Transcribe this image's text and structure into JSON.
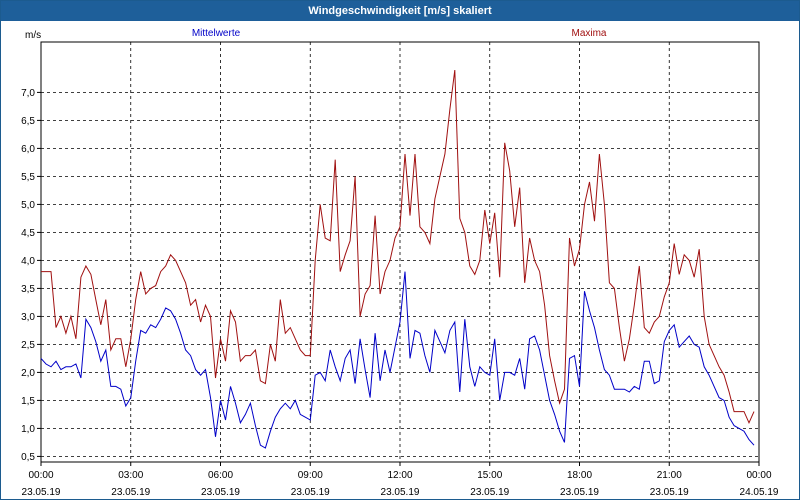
{
  "window": {
    "title": "Windgeschwindigkeit [m/s] skaliert"
  },
  "colors": {
    "mean": "#0000c8",
    "max": "#a01010",
    "grid": "#000000",
    "background": "#ffffff",
    "titlebar": "#1e5f9a"
  },
  "chart_data": {
    "type": "line",
    "ylabel": "m/s",
    "ylim": [
      0.4,
      7.9
    ],
    "yticks": [
      0.5,
      1.0,
      1.5,
      2.0,
      2.5,
      3.0,
      3.5,
      4.0,
      4.5,
      5.0,
      5.5,
      6.0,
      6.5,
      7.0
    ],
    "ytick_labels": [
      "0,5",
      "1,0",
      "1,5",
      "2,0",
      "2,5",
      "3,0",
      "3,5",
      "4,0",
      "4,5",
      "5,0",
      "5,5",
      "6,0",
      "6,5",
      "7,0"
    ],
    "xlim": [
      "23.05.19 00:00",
      "24.05.19 00:00"
    ],
    "xticks": [
      {
        "time": "00:00",
        "date": "23.05.19"
      },
      {
        "time": "03:00",
        "date": "23.05.19"
      },
      {
        "time": "06:00",
        "date": "23.05.19"
      },
      {
        "time": "09:00",
        "date": "23.05.19"
      },
      {
        "time": "12:00",
        "date": "23.05.19"
      },
      {
        "time": "15:00",
        "date": "23.05.19"
      },
      {
        "time": "18:00",
        "date": "23.05.19"
      },
      {
        "time": "21:00",
        "date": "23.05.19"
      },
      {
        "time": "00:00",
        "date": "24.05.19"
      }
    ],
    "grid": true,
    "legend": "top",
    "series": [
      {
        "name": "Mittelwerte",
        "color": "#0000c8",
        "points": [
          [
            "00:00",
            2.25
          ],
          [
            "00:10",
            2.15
          ],
          [
            "00:20",
            2.1
          ],
          [
            "00:30",
            2.2
          ],
          [
            "00:40",
            2.05
          ],
          [
            "00:50",
            2.1
          ],
          [
            "01:00",
            2.1
          ],
          [
            "01:10",
            2.15
          ],
          [
            "01:20",
            1.9
          ],
          [
            "01:30",
            2.95
          ],
          [
            "01:40",
            2.8
          ],
          [
            "01:50",
            2.55
          ],
          [
            "02:00",
            2.2
          ],
          [
            "02:10",
            2.4
          ],
          [
            "02:20",
            1.75
          ],
          [
            "02:30",
            1.75
          ],
          [
            "02:40",
            1.7
          ],
          [
            "02:50",
            1.4
          ],
          [
            "03:00",
            1.55
          ],
          [
            "03:10",
            2.2
          ],
          [
            "03:20",
            2.75
          ],
          [
            "03:30",
            2.7
          ],
          [
            "03:40",
            2.85
          ],
          [
            "03:50",
            2.8
          ],
          [
            "04:00",
            2.95
          ],
          [
            "04:10",
            3.15
          ],
          [
            "04:20",
            3.1
          ],
          [
            "04:30",
            2.95
          ],
          [
            "04:40",
            2.7
          ],
          [
            "04:50",
            2.4
          ],
          [
            "05:00",
            2.3
          ],
          [
            "05:10",
            2.05
          ],
          [
            "05:20",
            1.95
          ],
          [
            "05:30",
            2.05
          ],
          [
            "05:40",
            1.55
          ],
          [
            "05:50",
            0.85
          ],
          [
            "06:00",
            1.5
          ],
          [
            "06:10",
            1.15
          ],
          [
            "06:20",
            1.75
          ],
          [
            "06:30",
            1.45
          ],
          [
            "06:40",
            1.1
          ],
          [
            "06:50",
            1.25
          ],
          [
            "07:00",
            1.45
          ],
          [
            "07:10",
            1.05
          ],
          [
            "07:20",
            0.7
          ],
          [
            "07:30",
            0.65
          ],
          [
            "07:40",
            0.95
          ],
          [
            "07:50",
            1.2
          ],
          [
            "08:00",
            1.35
          ],
          [
            "08:10",
            1.45
          ],
          [
            "08:20",
            1.35
          ],
          [
            "08:30",
            1.5
          ],
          [
            "08:40",
            1.25
          ],
          [
            "08:50",
            1.2
          ],
          [
            "09:00",
            1.15
          ],
          [
            "09:10",
            1.95
          ],
          [
            "09:20",
            2.0
          ],
          [
            "09:30",
            1.85
          ],
          [
            "09:40",
            2.4
          ],
          [
            "09:50",
            2.1
          ],
          [
            "10:00",
            1.85
          ],
          [
            "10:10",
            2.25
          ],
          [
            "10:20",
            2.4
          ],
          [
            "10:30",
            1.8
          ],
          [
            "10:40",
            2.6
          ],
          [
            "10:50",
            2.05
          ],
          [
            "11:00",
            1.55
          ],
          [
            "11:10",
            2.7
          ],
          [
            "11:20",
            1.85
          ],
          [
            "11:30",
            2.4
          ],
          [
            "11:40",
            2.0
          ],
          [
            "11:50",
            2.45
          ],
          [
            "12:00",
            2.9
          ],
          [
            "12:10",
            3.8
          ],
          [
            "12:20",
            2.25
          ],
          [
            "12:30",
            2.75
          ],
          [
            "12:40",
            2.7
          ],
          [
            "12:50",
            2.3
          ],
          [
            "13:00",
            2.0
          ],
          [
            "13:10",
            2.75
          ],
          [
            "13:20",
            2.55
          ],
          [
            "13:30",
            2.35
          ],
          [
            "13:40",
            2.75
          ],
          [
            "13:50",
            2.9
          ],
          [
            "14:00",
            1.65
          ],
          [
            "14:10",
            2.95
          ],
          [
            "14:20",
            2.1
          ],
          [
            "14:30",
            1.75
          ],
          [
            "14:40",
            2.1
          ],
          [
            "14:50",
            2.0
          ],
          [
            "15:00",
            1.95
          ],
          [
            "15:10",
            2.6
          ],
          [
            "15:20",
            1.5
          ],
          [
            "15:30",
            2.0
          ],
          [
            "15:40",
            2.0
          ],
          [
            "15:50",
            1.95
          ],
          [
            "16:00",
            2.25
          ],
          [
            "16:10",
            1.7
          ],
          [
            "16:20",
            2.6
          ],
          [
            "16:30",
            2.65
          ],
          [
            "16:40",
            2.4
          ],
          [
            "16:50",
            1.95
          ],
          [
            "17:00",
            1.5
          ],
          [
            "17:10",
            1.25
          ],
          [
            "17:20",
            0.95
          ],
          [
            "17:30",
            0.75
          ],
          [
            "17:40",
            2.25
          ],
          [
            "17:50",
            2.3
          ],
          [
            "18:00",
            1.75
          ],
          [
            "18:10",
            3.45
          ],
          [
            "18:20",
            3.1
          ],
          [
            "18:30",
            2.8
          ],
          [
            "18:40",
            2.4
          ],
          [
            "18:50",
            2.05
          ],
          [
            "19:00",
            1.95
          ],
          [
            "19:10",
            1.7
          ],
          [
            "19:20",
            1.7
          ],
          [
            "19:30",
            1.7
          ],
          [
            "19:40",
            1.65
          ],
          [
            "19:50",
            1.75
          ],
          [
            "20:00",
            1.7
          ],
          [
            "20:10",
            2.2
          ],
          [
            "20:20",
            2.2
          ],
          [
            "20:30",
            1.8
          ],
          [
            "20:40",
            1.85
          ],
          [
            "20:50",
            2.55
          ],
          [
            "21:00",
            2.75
          ],
          [
            "21:10",
            2.85
          ],
          [
            "21:20",
            2.45
          ],
          [
            "21:30",
            2.55
          ],
          [
            "21:40",
            2.65
          ],
          [
            "21:50",
            2.5
          ],
          [
            "22:00",
            2.45
          ],
          [
            "22:10",
            2.1
          ],
          [
            "22:20",
            1.95
          ],
          [
            "22:30",
            1.75
          ],
          [
            "22:40",
            1.55
          ],
          [
            "22:50",
            1.5
          ],
          [
            "23:00",
            1.2
          ],
          [
            "23:10",
            1.05
          ],
          [
            "23:20",
            1.0
          ],
          [
            "23:30",
            0.95
          ],
          [
            "23:40",
            0.8
          ],
          [
            "23:50",
            0.7
          ]
        ]
      },
      {
        "name": "Maxima",
        "color": "#a01010",
        "points": [
          [
            "00:00",
            3.8
          ],
          [
            "00:10",
            3.8
          ],
          [
            "00:20",
            3.8
          ],
          [
            "00:30",
            2.8
          ],
          [
            "00:40",
            3.0
          ],
          [
            "00:50",
            2.7
          ],
          [
            "01:00",
            3.0
          ],
          [
            "01:10",
            2.6
          ],
          [
            "01:20",
            3.7
          ],
          [
            "01:30",
            3.9
          ],
          [
            "01:40",
            3.75
          ],
          [
            "01:50",
            3.3
          ],
          [
            "02:00",
            2.85
          ],
          [
            "02:10",
            3.3
          ],
          [
            "02:20",
            2.4
          ],
          [
            "02:30",
            2.6
          ],
          [
            "02:40",
            2.6
          ],
          [
            "02:50",
            2.1
          ],
          [
            "03:00",
            2.6
          ],
          [
            "03:10",
            3.3
          ],
          [
            "03:20",
            3.8
          ],
          [
            "03:30",
            3.4
          ],
          [
            "03:40",
            3.5
          ],
          [
            "03:50",
            3.55
          ],
          [
            "04:00",
            3.8
          ],
          [
            "04:10",
            3.9
          ],
          [
            "04:20",
            4.1
          ],
          [
            "04:30",
            4.0
          ],
          [
            "04:40",
            3.8
          ],
          [
            "04:50",
            3.6
          ],
          [
            "05:00",
            3.2
          ],
          [
            "05:10",
            3.3
          ],
          [
            "05:20",
            2.9
          ],
          [
            "05:30",
            3.2
          ],
          [
            "05:40",
            3.0
          ],
          [
            "05:50",
            1.9
          ],
          [
            "06:00",
            2.6
          ],
          [
            "06:10",
            2.2
          ],
          [
            "06:20",
            3.1
          ],
          [
            "06:30",
            2.9
          ],
          [
            "06:40",
            2.2
          ],
          [
            "06:50",
            2.3
          ],
          [
            "07:00",
            2.3
          ],
          [
            "07:10",
            2.4
          ],
          [
            "07:20",
            1.85
          ],
          [
            "07:30",
            1.8
          ],
          [
            "07:40",
            2.5
          ],
          [
            "07:50",
            2.2
          ],
          [
            "08:00",
            3.3
          ],
          [
            "08:10",
            2.7
          ],
          [
            "08:20",
            2.8
          ],
          [
            "08:30",
            2.6
          ],
          [
            "08:40",
            2.4
          ],
          [
            "08:50",
            2.3
          ],
          [
            "09:00",
            2.3
          ],
          [
            "09:10",
            4.0
          ],
          [
            "09:20",
            5.0
          ],
          [
            "09:30",
            4.4
          ],
          [
            "09:40",
            4.35
          ],
          [
            "09:50",
            5.8
          ],
          [
            "10:00",
            3.8
          ],
          [
            "10:10",
            4.1
          ],
          [
            "10:20",
            4.35
          ],
          [
            "10:30",
            5.5
          ],
          [
            "10:40",
            3.0
          ],
          [
            "10:50",
            3.4
          ],
          [
            "11:00",
            3.55
          ],
          [
            "11:10",
            4.8
          ],
          [
            "11:20",
            3.4
          ],
          [
            "11:30",
            3.8
          ],
          [
            "11:40",
            4.0
          ],
          [
            "11:50",
            4.4
          ],
          [
            "12:00",
            4.6
          ],
          [
            "12:10",
            5.9
          ],
          [
            "12:20",
            4.8
          ],
          [
            "12:30",
            5.9
          ],
          [
            "12:40",
            4.6
          ],
          [
            "12:50",
            4.5
          ],
          [
            "13:00",
            4.3
          ],
          [
            "13:10",
            5.1
          ],
          [
            "13:20",
            5.5
          ],
          [
            "13:30",
            5.9
          ],
          [
            "13:40",
            6.7
          ],
          [
            "13:50",
            7.4
          ],
          [
            "14:00",
            4.75
          ],
          [
            "14:10",
            4.5
          ],
          [
            "14:20",
            3.9
          ],
          [
            "14:30",
            3.75
          ],
          [
            "14:40",
            4.0
          ],
          [
            "14:50",
            4.9
          ],
          [
            "15:00",
            4.3
          ],
          [
            "15:10",
            4.85
          ],
          [
            "15:20",
            3.7
          ],
          [
            "15:30",
            6.1
          ],
          [
            "15:40",
            5.6
          ],
          [
            "15:50",
            4.6
          ],
          [
            "16:00",
            5.3
          ],
          [
            "16:10",
            3.6
          ],
          [
            "16:20",
            4.4
          ],
          [
            "16:30",
            4.0
          ],
          [
            "16:40",
            3.8
          ],
          [
            "16:50",
            3.2
          ],
          [
            "17:00",
            2.3
          ],
          [
            "17:10",
            1.85
          ],
          [
            "17:20",
            1.45
          ],
          [
            "17:30",
            1.7
          ],
          [
            "17:40",
            4.4
          ],
          [
            "17:50",
            3.9
          ],
          [
            "18:00",
            4.2
          ],
          [
            "18:10",
            5.0
          ],
          [
            "18:20",
            5.4
          ],
          [
            "18:30",
            4.7
          ],
          [
            "18:40",
            5.9
          ],
          [
            "18:50",
            5.0
          ],
          [
            "19:00",
            3.6
          ],
          [
            "19:10",
            3.5
          ],
          [
            "19:20",
            2.8
          ],
          [
            "19:30",
            2.2
          ],
          [
            "19:40",
            2.6
          ],
          [
            "19:50",
            3.2
          ],
          [
            "20:00",
            3.9
          ],
          [
            "20:10",
            2.8
          ],
          [
            "20:20",
            2.7
          ],
          [
            "20:30",
            2.9
          ],
          [
            "20:40",
            3.0
          ],
          [
            "20:50",
            3.35
          ],
          [
            "21:00",
            3.6
          ],
          [
            "21:10",
            4.3
          ],
          [
            "21:20",
            3.75
          ],
          [
            "21:30",
            4.1
          ],
          [
            "21:40",
            4.0
          ],
          [
            "21:50",
            3.7
          ],
          [
            "22:00",
            4.2
          ],
          [
            "22:10",
            3.0
          ],
          [
            "22:20",
            2.5
          ],
          [
            "22:30",
            2.3
          ],
          [
            "22:40",
            2.1
          ],
          [
            "22:50",
            1.95
          ],
          [
            "23:00",
            1.65
          ],
          [
            "23:10",
            1.3
          ],
          [
            "23:20",
            1.3
          ],
          [
            "23:30",
            1.3
          ],
          [
            "23:40",
            1.1
          ],
          [
            "23:50",
            1.3
          ]
        ]
      }
    ]
  }
}
